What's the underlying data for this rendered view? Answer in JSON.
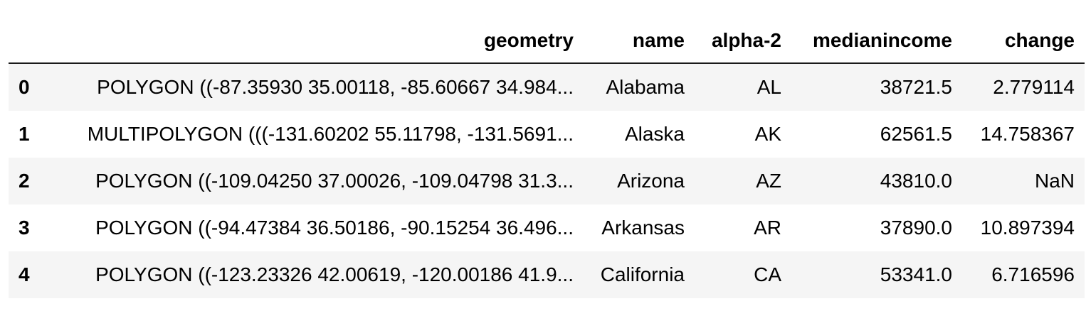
{
  "table": {
    "columns": [
      "",
      "geometry",
      "name",
      "alpha-2",
      "medianincome",
      "change"
    ],
    "rows": [
      {
        "index": "0",
        "geometry": "POLYGON ((-87.35930 35.00118, -85.60667 34.984...",
        "name": "Alabama",
        "alpha2": "AL",
        "medianincome": "38721.5",
        "change": "2.779114"
      },
      {
        "index": "1",
        "geometry": "MULTIPOLYGON (((-131.60202 55.11798, -131.5691...",
        "name": "Alaska",
        "alpha2": "AK",
        "medianincome": "62561.5",
        "change": "14.758367"
      },
      {
        "index": "2",
        "geometry": "POLYGON ((-109.04250 37.00026, -109.04798 31.3...",
        "name": "Arizona",
        "alpha2": "AZ",
        "medianincome": "43810.0",
        "change": "NaN"
      },
      {
        "index": "3",
        "geometry": "POLYGON ((-94.47384 36.50186, -90.15254 36.496...",
        "name": "Arkansas",
        "alpha2": "AR",
        "medianincome": "37890.0",
        "change": "10.897394"
      },
      {
        "index": "4",
        "geometry": "POLYGON ((-123.23326 42.00619, -120.00186 41.9...",
        "name": "California",
        "alpha2": "CA",
        "medianincome": "53341.0",
        "change": "6.716596"
      }
    ]
  }
}
